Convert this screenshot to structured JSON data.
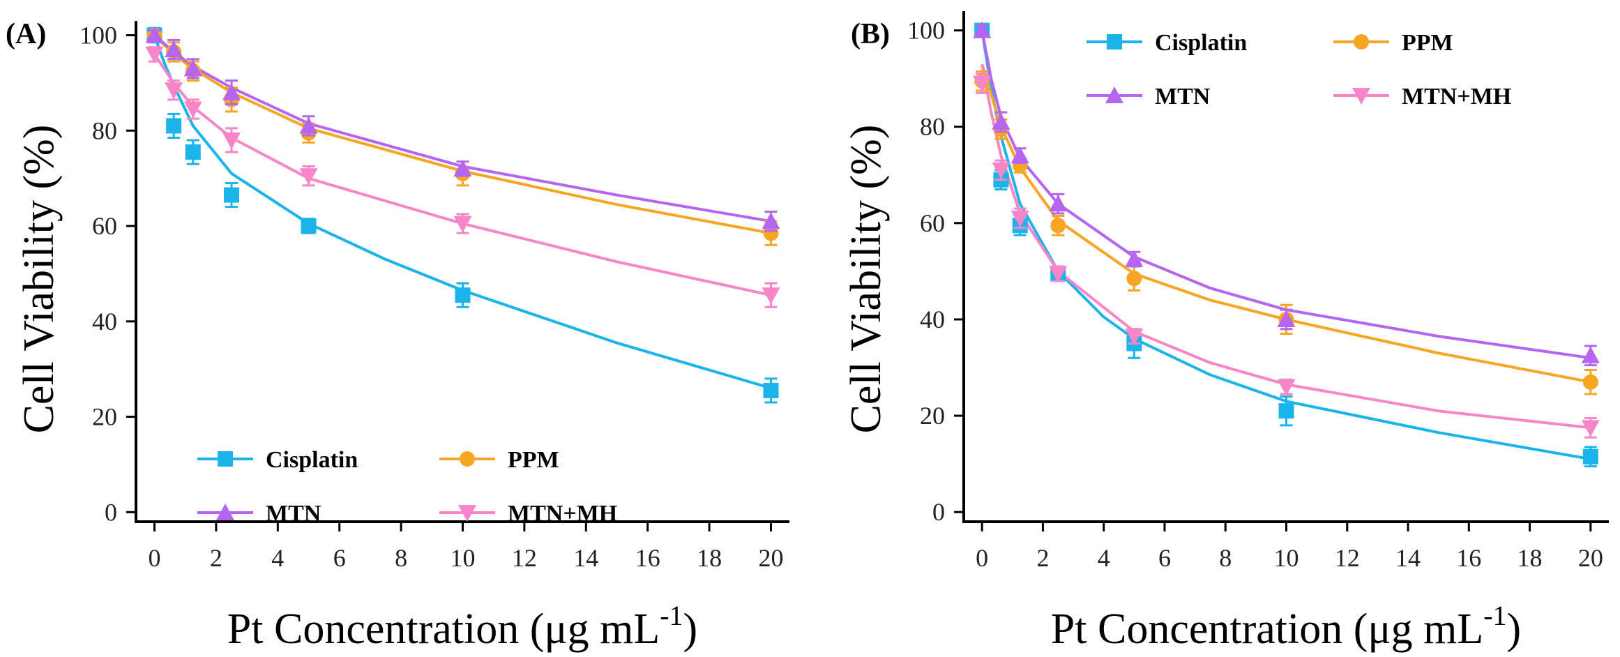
{
  "chart_data": [
    {
      "type": "line",
      "panel_label": "(A)",
      "xlabel": "Pt Concentration (μg mL",
      "xlabel_sup": "-1",
      "xlabel_close": ")",
      "ylabel": "Cell Viability (%)",
      "xlim": [
        -0.6,
        20.6
      ],
      "ylim": [
        -2,
        103
      ],
      "xticks": [
        0,
        2,
        4,
        6,
        8,
        10,
        12,
        14,
        16,
        18,
        20
      ],
      "yticks": [
        0,
        20,
        40,
        60,
        80,
        100
      ],
      "x": [
        0,
        0.625,
        1.25,
        2.5,
        5,
        10,
        20
      ],
      "legend_position": "lower-center",
      "series": [
        {
          "name": "Cisplatin",
          "color": "#1ab4ea",
          "marker": "square",
          "values": [
            100,
            81,
            75.5,
            66.5,
            60,
            45.5,
            25.5
          ],
          "errors": [
            1.5,
            2.5,
            2.5,
            2.5,
            1.5,
            2.5,
            2.5
          ]
        },
        {
          "name": "PPM",
          "color": "#f6a623",
          "marker": "circle",
          "values": [
            100,
            96.5,
            92.5,
            86.5,
            79.5,
            71,
            58.5
          ],
          "errors": [
            1,
            2,
            2,
            2.5,
            2,
            2.5,
            2.5
          ]
        },
        {
          "name": "MTN",
          "color": "#b565f0",
          "marker": "triangle-up",
          "values": [
            100,
            97,
            93,
            88,
            81,
            72,
            61
          ],
          "errors": [
            1,
            2,
            2,
            2.5,
            2,
            1.5,
            2
          ]
        },
        {
          "name": "MTN+MH",
          "color": "#f786c8",
          "marker": "triangle-down",
          "values": [
            96,
            88.5,
            84.5,
            78,
            70.5,
            60.5,
            45.5
          ],
          "errors": [
            1.5,
            2,
            2,
            2.5,
            2,
            2,
            2.5
          ]
        }
      ],
      "fits": [
        [
          [
            0,
            100
          ],
          [
            0.3,
            94.5
          ],
          [
            0.625,
            89.5
          ],
          [
            1.25,
            81
          ],
          [
            2.5,
            71
          ],
          [
            5,
            60.5
          ],
          [
            7.5,
            53
          ],
          [
            10,
            46.5
          ],
          [
            15,
            35.5
          ],
          [
            20,
            26
          ]
        ],
        [
          [
            0,
            100
          ],
          [
            0.625,
            96
          ],
          [
            1.25,
            93
          ],
          [
            2.5,
            88
          ],
          [
            5,
            80.5
          ],
          [
            10,
            71.5
          ],
          [
            15,
            64.5
          ],
          [
            20,
            58.5
          ]
        ],
        [
          [
            0,
            100
          ],
          [
            0.625,
            96.5
          ],
          [
            1.25,
            93.5
          ],
          [
            2.5,
            89
          ],
          [
            5,
            81.5
          ],
          [
            10,
            72.5
          ],
          [
            15,
            66.5
          ],
          [
            20,
            61
          ]
        ],
        [
          [
            0,
            96
          ],
          [
            0.625,
            90
          ],
          [
            1.25,
            85
          ],
          [
            2.5,
            78.5
          ],
          [
            5,
            70
          ],
          [
            10,
            60.5
          ],
          [
            15,
            52.5
          ],
          [
            20,
            45.5
          ]
        ]
      ]
    },
    {
      "type": "line",
      "panel_label": "(B)",
      "xlabel": "Pt Concentration (μg mL",
      "xlabel_sup": "-1",
      "xlabel_close": ")",
      "ylabel": "Cell Viability (%)",
      "xlim": [
        -0.6,
        20.6
      ],
      "ylim": [
        -2,
        104
      ],
      "xticks": [
        0,
        2,
        4,
        6,
        8,
        10,
        12,
        14,
        16,
        18,
        20
      ],
      "yticks": [
        0,
        20,
        40,
        60,
        80,
        100
      ],
      "x": [
        0,
        0.625,
        1.25,
        2.5,
        5,
        10,
        20
      ],
      "legend_position": "top-center",
      "series": [
        {
          "name": "Cisplatin",
          "color": "#1ab4ea",
          "marker": "square",
          "values": [
            100,
            69,
            59.5,
            49.5,
            35,
            21,
            11.5
          ],
          "errors": [
            1,
            2,
            2,
            1.5,
            3,
            3,
            2
          ]
        },
        {
          "name": "PPM",
          "color": "#f6a623",
          "marker": "circle",
          "values": [
            89.5,
            79.5,
            72,
            59.5,
            48.5,
            40,
            27
          ],
          "errors": [
            2,
            2,
            1.5,
            2,
            2.5,
            3,
            2.5
          ]
        },
        {
          "name": "MTN",
          "color": "#b565f0",
          "marker": "triangle-up",
          "values": [
            100,
            81,
            74,
            64,
            52.5,
            40,
            32.5
          ],
          "errors": [
            1,
            2,
            1.5,
            2,
            1.5,
            2,
            2
          ]
        },
        {
          "name": "MTN+MH",
          "color": "#f786c8",
          "marker": "triangle-down",
          "values": [
            89,
            71,
            61,
            49.5,
            36.5,
            26,
            17.5
          ],
          "errors": [
            2,
            2,
            2,
            1.5,
            1.5,
            1.5,
            2
          ]
        }
      ],
      "fits": [
        [
          [
            0,
            100
          ],
          [
            0.3,
            88
          ],
          [
            0.625,
            78
          ],
          [
            1.25,
            64
          ],
          [
            2.5,
            50
          ],
          [
            4,
            40.5
          ],
          [
            5,
            36
          ],
          [
            7.5,
            28.5
          ],
          [
            10,
            23
          ],
          [
            15,
            16.5
          ],
          [
            20,
            11
          ]
        ],
        [
          [
            0,
            93
          ],
          [
            0.625,
            80
          ],
          [
            1.25,
            71.5
          ],
          [
            2.5,
            60.5
          ],
          [
            5,
            49.5
          ],
          [
            7.5,
            44
          ],
          [
            10,
            40
          ],
          [
            15,
            33
          ],
          [
            20,
            27
          ]
        ],
        [
          [
            0,
            100
          ],
          [
            0.3,
            90
          ],
          [
            0.625,
            82
          ],
          [
            1.25,
            73.5
          ],
          [
            2.5,
            64
          ],
          [
            5,
            53
          ],
          [
            7.5,
            46.5
          ],
          [
            10,
            42
          ],
          [
            15,
            36.5
          ],
          [
            20,
            32
          ]
        ],
        [
          [
            0,
            93
          ],
          [
            0.3,
            83
          ],
          [
            0.625,
            74
          ],
          [
            1.25,
            62
          ],
          [
            2.5,
            50
          ],
          [
            5,
            37.5
          ],
          [
            7.5,
            31
          ],
          [
            10,
            26.5
          ],
          [
            15,
            21
          ],
          [
            20,
            17.5
          ]
        ]
      ]
    }
  ]
}
